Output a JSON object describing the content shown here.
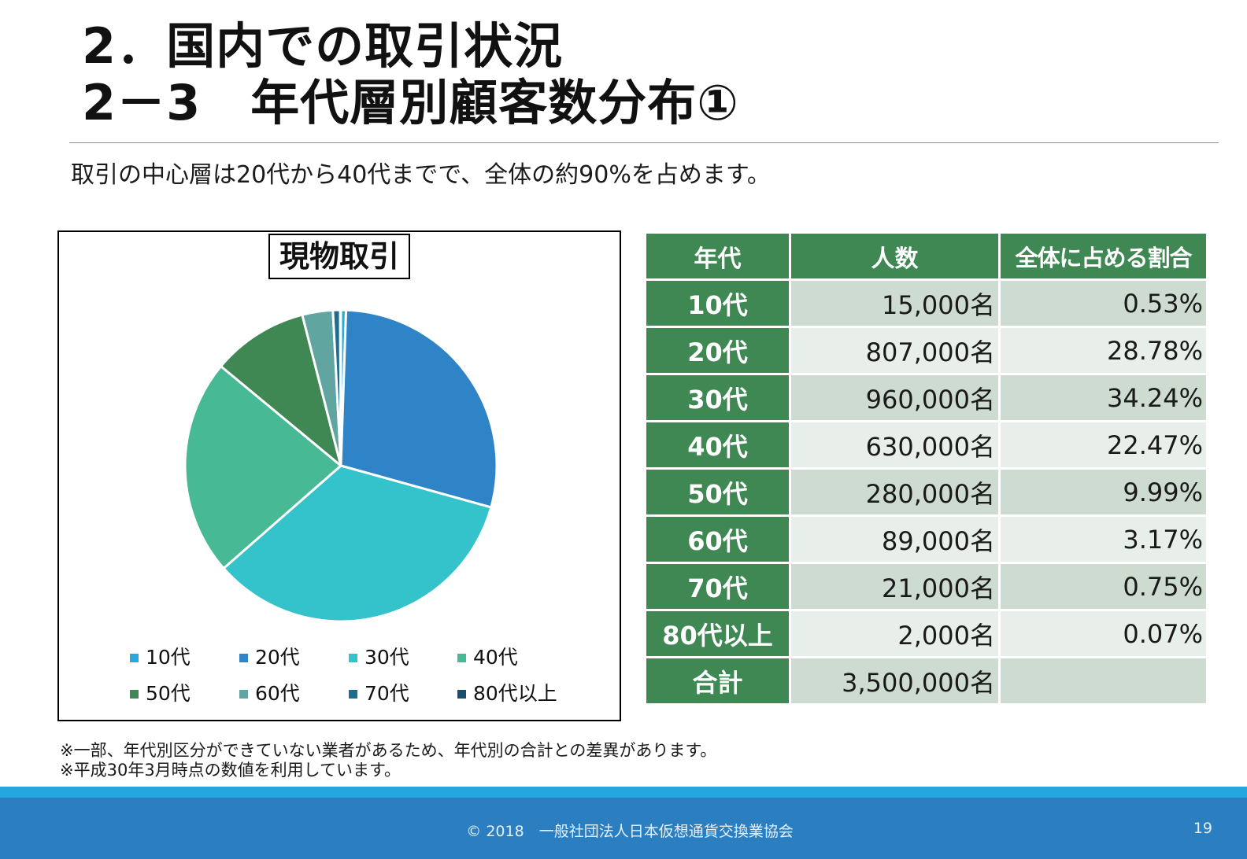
{
  "header": {
    "title_line1": "2．国内での取引状況",
    "title_line2": "2－3　年代層別顧客数分布①",
    "lead": "取引の中心層は20代から40代までで、全体の約90%を占めます。"
  },
  "colors": {
    "table_header_bg": "#3f8853",
    "table_cell_dark": "#cedbd1",
    "table_cell_light": "#e8eee9",
    "footer_bg": "#2b7fc1",
    "footer_stripe": "#25a6dc"
  },
  "chart_data": {
    "type": "pie",
    "title": "現物取引",
    "categories": [
      "10代",
      "20代",
      "30代",
      "40代",
      "50代",
      "60代",
      "70代",
      "80代以上"
    ],
    "values": [
      0.53,
      28.78,
      34.24,
      22.47,
      9.99,
      3.17,
      0.75,
      0.07
    ],
    "colors": [
      "#2aa7dc",
      "#2e84c6",
      "#35c3cb",
      "#47b994",
      "#3f8853",
      "#61a5a0",
      "#1f6d8e",
      "#1b4e6e"
    ],
    "legend_position": "bottom"
  },
  "table": {
    "headers": [
      "年代",
      "人数",
      "全体に占める割合"
    ],
    "rows": [
      {
        "age": "10代",
        "count": "15,000名",
        "pct": "0.53%"
      },
      {
        "age": "20代",
        "count": "807,000名",
        "pct": "28.78%"
      },
      {
        "age": "30代",
        "count": "960,000名",
        "pct": "34.24%"
      },
      {
        "age": "40代",
        "count": "630,000名",
        "pct": "22.47%"
      },
      {
        "age": "50代",
        "count": "280,000名",
        "pct": "9.99%"
      },
      {
        "age": "60代",
        "count": "89,000名",
        "pct": "3.17%"
      },
      {
        "age": "70代",
        "count": "21,000名",
        "pct": "0.75%"
      },
      {
        "age": "80代以上",
        "count": "2,000名",
        "pct": "0.07%"
      }
    ],
    "total": {
      "label": "合計",
      "count": "3,500,000名",
      "pct": ""
    }
  },
  "notes": [
    "※一部、年代別区分ができていない業者があるため、年代別の合計との差異があります。",
    "※平成30年3月時点の数値を利用しています。"
  ],
  "footer": {
    "copyright": "© 2018　一般社団法人日本仮想通貨交換業協会",
    "page_number": "19"
  }
}
